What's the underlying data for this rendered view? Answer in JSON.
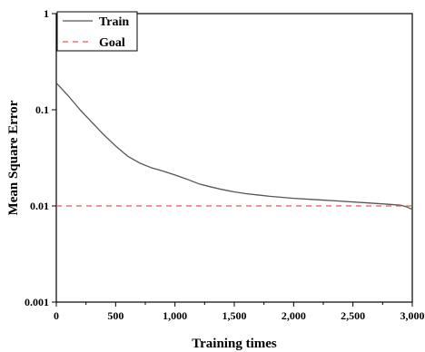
{
  "chart_data": {
    "type": "line",
    "title": "",
    "xlabel": "Training times",
    "ylabel": "Mean Square Error",
    "xlim": [
      0,
      3000
    ],
    "ylim": [
      0.001,
      1
    ],
    "yscale": "log",
    "grid": false,
    "legend_position": "top-left",
    "x_ticks": [
      0,
      500,
      1000,
      1500,
      2000,
      2500,
      3000
    ],
    "x_tick_labels": [
      "0",
      "500",
      "1,000",
      "1,500",
      "2,000",
      "2,500",
      "3,000"
    ],
    "y_ticks": [
      1,
      0.1,
      0.01,
      0.001
    ],
    "y_tick_labels": [
      "1",
      "0.1",
      "0.01",
      "0.001"
    ],
    "series": [
      {
        "name": "Train",
        "color": "#555555",
        "style": "solid",
        "x": [
          0,
          100,
          200,
          300,
          400,
          500,
          600,
          700,
          800,
          900,
          1000,
          1100,
          1200,
          1300,
          1400,
          1500,
          1600,
          1700,
          1800,
          1900,
          2000,
          2200,
          2400,
          2600,
          2800,
          2900,
          2950,
          3000
        ],
        "y": [
          0.19,
          0.14,
          0.1,
          0.074,
          0.055,
          0.042,
          0.033,
          0.028,
          0.025,
          0.023,
          0.021,
          0.019,
          0.017,
          0.0158,
          0.0148,
          0.014,
          0.0134,
          0.013,
          0.0126,
          0.0123,
          0.012,
          0.0116,
          0.0112,
          0.0108,
          0.0104,
          0.0102,
          0.0098,
          0.0092
        ]
      },
      {
        "name": "Goal",
        "color": "#e8585f",
        "style": "dashed",
        "x": [
          0,
          3000
        ],
        "y": [
          0.01,
          0.01
        ]
      }
    ]
  }
}
